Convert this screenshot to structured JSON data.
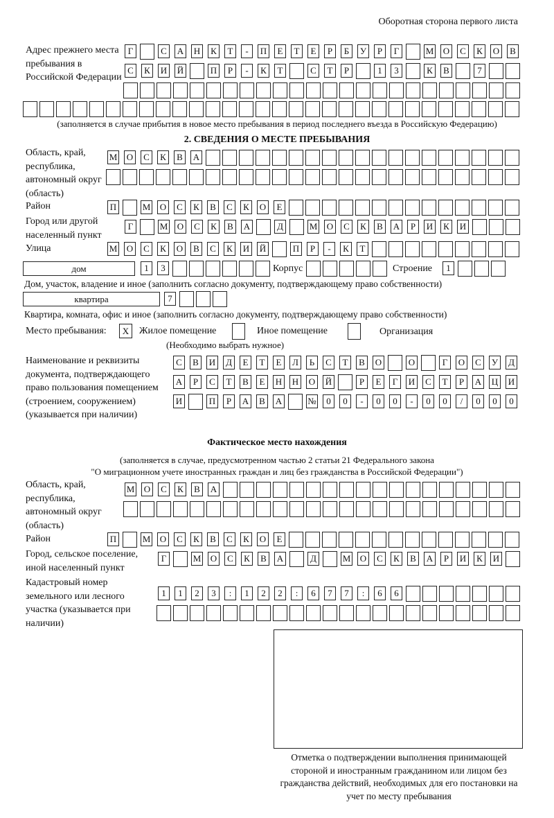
{
  "header": "Оборотная сторона первого листа",
  "prev_address": {
    "label": "Адрес прежнего места пребывания в Российской Федерации",
    "rows": [
      [
        "Г",
        "",
        "С",
        "А",
        "Н",
        "К",
        "Т",
        "-",
        "П",
        "Е",
        "Т",
        "Е",
        "Р",
        "Б",
        "У",
        "Р",
        "Г",
        "",
        "М",
        "О",
        "С",
        "К",
        "О",
        "В"
      ],
      [
        "С",
        "К",
        "И",
        "Й",
        "",
        "П",
        "Р",
        "-",
        "К",
        "Т",
        "",
        "С",
        "Т",
        "Р",
        "",
        "1",
        "3",
        "",
        "К",
        "В",
        "",
        "7",
        "",
        ""
      ],
      [
        "",
        "",
        "",
        "",
        "",
        "",
        "",
        "",
        "",
        "",
        "",
        "",
        "",
        "",
        "",
        "",
        "",
        "",
        "",
        "",
        "",
        "",
        "",
        ""
      ],
      [
        "",
        "",
        "",
        "",
        "",
        "",
        "",
        "",
        "",
        "",
        "",
        "",
        "",
        "",
        "",
        "",
        "",
        "",
        "",
        "",
        "",
        "",
        "",
        "",
        "",
        "",
        "",
        "",
        "",
        ""
      ]
    ],
    "note": "(заполняется в случае прибытия в новое место пребывания в период последнего въезда в Российскую Федерацию)"
  },
  "section2": {
    "title": "2. СВЕДЕНИЯ О МЕСТЕ ПРЕБЫВАНИЯ",
    "region_label": "Область, край, республика, автономный округ (область)",
    "region_rows": [
      [
        "М",
        "О",
        "С",
        "К",
        "В",
        "А",
        "",
        "",
        "",
        "",
        "",
        "",
        "",
        "",
        "",
        "",
        "",
        "",
        "",
        "",
        "",
        "",
        "",
        "",
        ""
      ],
      [
        "",
        "",
        "",
        "",
        "",
        "",
        "",
        "",
        "",
        "",
        "",
        "",
        "",
        "",
        "",
        "",
        "",
        "",
        "",
        "",
        "",
        "",
        "",
        "",
        ""
      ]
    ],
    "district_label": "Район",
    "district_row": [
      "П",
      "",
      "М",
      "О",
      "С",
      "К",
      "В",
      "С",
      "К",
      "О",
      "Е",
      "",
      "",
      "",
      "",
      "",
      "",
      "",
      "",
      "",
      "",
      "",
      "",
      "",
      ""
    ],
    "city_label": "Город или другой населенный пункт",
    "city_row": [
      "Г",
      "",
      "М",
      "О",
      "С",
      "К",
      "В",
      "А",
      "",
      "Д",
      "",
      "М",
      "О",
      "С",
      "К",
      "В",
      "А",
      "Р",
      "И",
      "К",
      "И",
      "",
      "",
      ""
    ],
    "street_label": "Улица",
    "street_row": [
      "М",
      "О",
      "С",
      "К",
      "О",
      "В",
      "С",
      "К",
      "И",
      "Й",
      "",
      "П",
      "Р",
      "-",
      "К",
      "Т",
      "",
      "",
      "",
      "",
      "",
      "",
      "",
      "",
      ""
    ],
    "house_type": "дом",
    "house_cells": [
      "1",
      "3",
      "",
      "",
      "",
      "",
      "",
      ""
    ],
    "korpus_label": "Корпус",
    "korpus_cells": [
      "",
      "",
      "",
      "",
      ""
    ],
    "building_label": "Строение",
    "building_cells": [
      "1",
      "",
      "",
      ""
    ],
    "house_note": "Дом, участок, владение и иное (заполнить согласно документу, подтверждающему право собственности)",
    "apt_type": "квартира",
    "apt_cells": [
      "7",
      "",
      "",
      ""
    ],
    "apt_note": "Квартира, комната, офис и иное (заполнить согласно документу, подтверждающему право собственности)",
    "stay_label": "Место пребывания:",
    "stay_options": [
      {
        "label": "Жилое помещение",
        "mark": "X"
      },
      {
        "label": "Иное помещение",
        "mark": ""
      },
      {
        "label": "Организация",
        "mark": ""
      }
    ],
    "stay_note": "(Необходимо выбрать нужное)",
    "doc_label": "Наименование и реквизиты документа, подтверждающего право пользования помещением (строением, сооружением) (указывается при наличии)",
    "doc_rows": [
      [
        "С",
        "В",
        "И",
        "Д",
        "Е",
        "Т",
        "Е",
        "Л",
        "Ь",
        "С",
        "Т",
        "В",
        "О",
        "",
        "О",
        "",
        "Г",
        "О",
        "С",
        "У",
        "Д"
      ],
      [
        "А",
        "Р",
        "С",
        "Т",
        "В",
        "Е",
        "Н",
        "Н",
        "О",
        "Й",
        "",
        "Р",
        "Е",
        "Г",
        "И",
        "С",
        "Т",
        "Р",
        "А",
        "Ц",
        "И"
      ],
      [
        "И",
        "",
        "П",
        "Р",
        "А",
        "В",
        "А",
        "",
        "№",
        "0",
        "0",
        "-",
        "0",
        "0",
        "-",
        "0",
        "0",
        "/",
        "0",
        "0",
        "0"
      ]
    ]
  },
  "actual": {
    "title": "Фактическое место нахождения",
    "note1": "(заполняется в случае, предусмотренном частью 2 статьи 21 Федерального закона",
    "note2": "\"О миграционном учете иностранных граждан и лиц без гражданства в Российской Федерации\")",
    "region_label": "Область, край, республика, автономный округ (область)",
    "region_rows": [
      [
        "М",
        "О",
        "С",
        "К",
        "В",
        "А",
        "",
        "",
        "",
        "",
        "",
        "",
        "",
        "",
        "",
        "",
        "",
        "",
        "",
        "",
        "",
        "",
        "",
        ""
      ],
      [
        "",
        "",
        "",
        "",
        "",
        "",
        "",
        "",
        "",
        "",
        "",
        "",
        "",
        "",
        "",
        "",
        "",
        "",
        "",
        "",
        "",
        "",
        "",
        ""
      ]
    ],
    "district_label": "Район",
    "district_row": [
      "П",
      "",
      "М",
      "О",
      "С",
      "К",
      "В",
      "С",
      "К",
      "О",
      "Е",
      "",
      "",
      "",
      "",
      "",
      "",
      "",
      "",
      "",
      "",
      "",
      "",
      "",
      ""
    ],
    "city_label": "Город, сельское поселение, иной населенный пункт",
    "city_row": [
      "Г",
      "",
      "М",
      "О",
      "С",
      "К",
      "В",
      "А",
      "",
      "Д",
      "",
      "М",
      "О",
      "С",
      "К",
      "В",
      "А",
      "Р",
      "И",
      "К",
      "И",
      ""
    ],
    "cadastral_label": "Кадастровый номер земельного или лесного участка (указывается при наличии)",
    "cadastral_rows": [
      [
        "1",
        "1",
        "2",
        "3",
        ":",
        "1",
        "2",
        "2",
        ":",
        "6",
        "7",
        "7",
        ":",
        "6",
        "6",
        "",
        "",
        "",
        "",
        "",
        "",
        ""
      ],
      [
        "",
        "",
        "",
        "",
        "",
        "",
        "",
        "",
        "",
        "",
        "",
        "",
        "",
        "",
        "",
        "",
        "",
        "",
        "",
        "",
        "",
        ""
      ]
    ]
  },
  "confirmation": {
    "caption": "Отметка о подтверждении выполнения принимающей стороной и иностранным гражданином или лицом без гражданства действий, необходимых для его постановки на учет по месту пребывания"
  }
}
